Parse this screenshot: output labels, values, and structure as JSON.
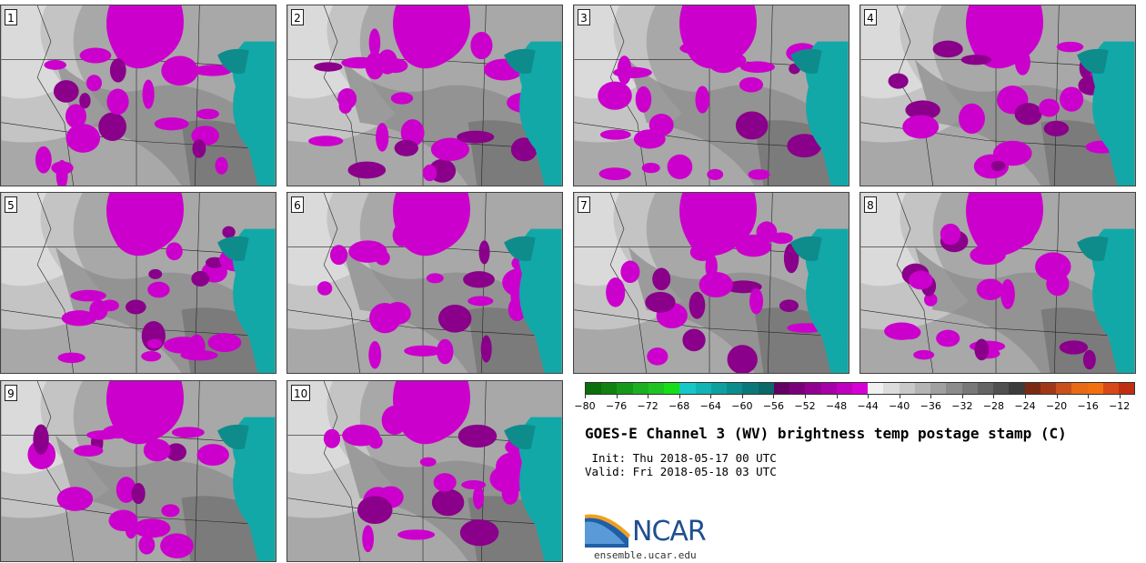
{
  "panels": [
    {
      "label": "1"
    },
    {
      "label": "2"
    },
    {
      "label": "3"
    },
    {
      "label": "4"
    },
    {
      "label": "5"
    },
    {
      "label": "6"
    },
    {
      "label": "7"
    },
    {
      "label": "8"
    },
    {
      "label": "9"
    },
    {
      "label": "10"
    }
  ],
  "colorbar": {
    "colors": [
      "#0a6e0a",
      "#11820f",
      "#169918",
      "#1bb01f",
      "#1ec522",
      "#18de18",
      "#14c8c8",
      "#10b4b4",
      "#0ea0a0",
      "#0c8c8c",
      "#0a7878",
      "#0a6868",
      "#640064",
      "#7a007a",
      "#920092",
      "#a800a8",
      "#bf00bf",
      "#d600d6",
      "#f0f0f0",
      "#dcdcdc",
      "#c8c8c8",
      "#b4b4b4",
      "#a0a0a0",
      "#8c8c8c",
      "#787878",
      "#646464",
      "#505050",
      "#3c3c3c",
      "#7a2a14",
      "#a03818",
      "#c8501c",
      "#e86a14",
      "#f07010",
      "#d8481a",
      "#c02e12"
    ],
    "tick_labels": [
      "−80",
      "−76",
      "−72",
      "−68",
      "−64",
      "−60",
      "−56",
      "−52",
      "−48",
      "−44",
      "−40",
      "−36",
      "−32",
      "−28",
      "−24",
      "−20",
      "−16",
      "−12"
    ]
  },
  "title": "GOES-E Channel 3 (WV) brightness temp postage stamp (C)",
  "init": " Init: Thu 2018-05-17 00 UTC",
  "valid": "Valid: Fri 2018-05-18 03 UTC",
  "logo": {
    "name": "NCAR",
    "url": "ensemble.ucar.edu",
    "brand_color": "#1f4f8f"
  }
}
